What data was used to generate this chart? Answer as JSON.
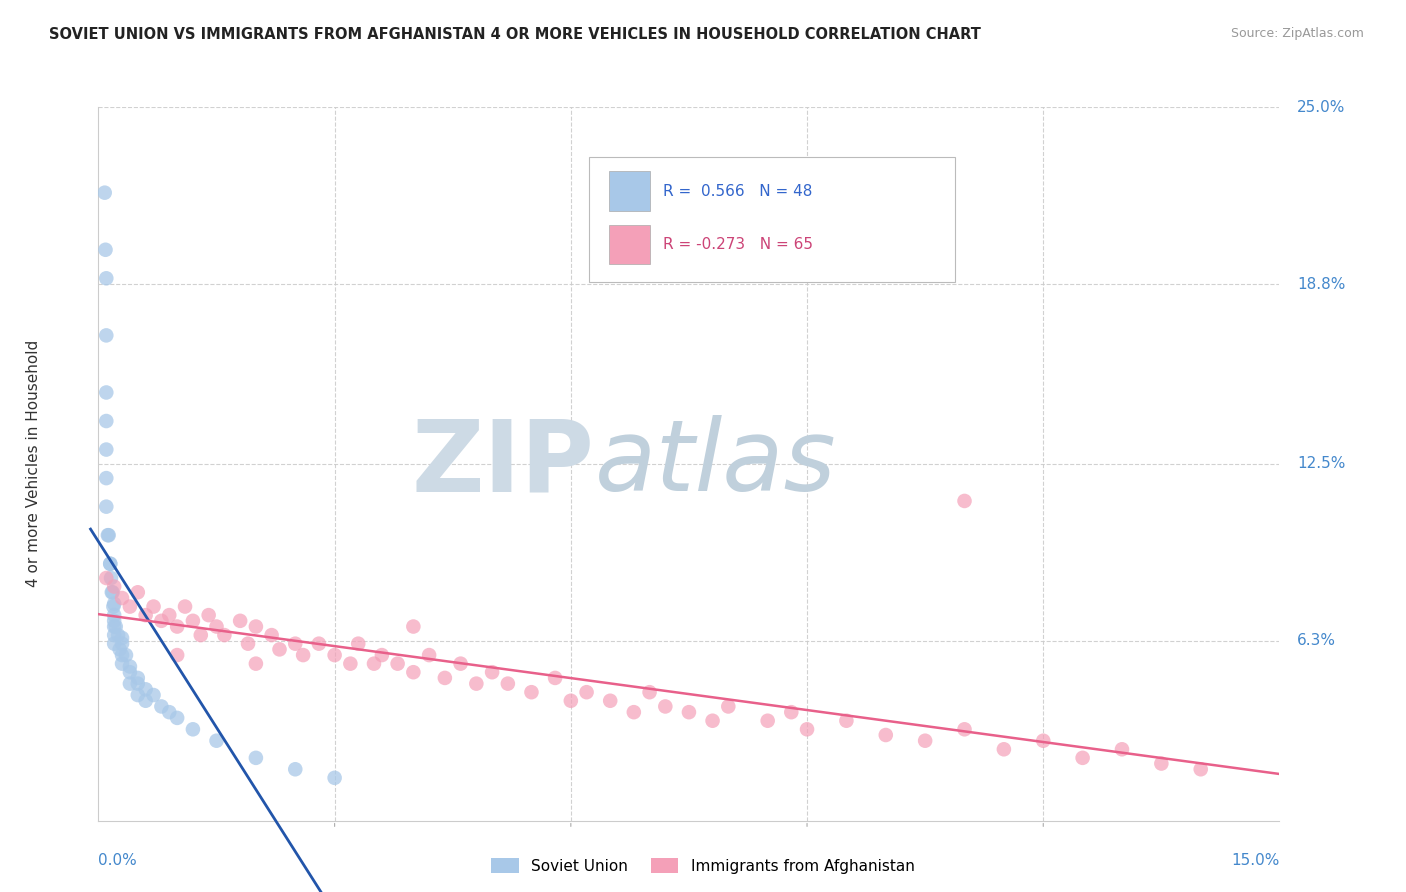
{
  "title": "SOVIET UNION VS IMMIGRANTS FROM AFGHANISTAN 4 OR MORE VEHICLES IN HOUSEHOLD CORRELATION CHART",
  "source": "Source: ZipAtlas.com",
  "ylabel": "4 or more Vehicles in Household",
  "xlim": [
    0.0,
    0.15
  ],
  "ylim": [
    0.0,
    0.25
  ],
  "ytick_labels": [
    "25.0%",
    "18.8%",
    "12.5%",
    "6.3%"
  ],
  "ytick_values": [
    0.25,
    0.188,
    0.125,
    0.063
  ],
  "color_soviet": "#a8c8e8",
  "color_afghanistan": "#f4a0b8",
  "line_color_soviet": "#2255aa",
  "line_color_afghanistan": "#e8608a",
  "watermark_zip_color": "#d0dce8",
  "watermark_atlas_color": "#c8d8e0",
  "background_color": "#ffffff",
  "grid_color": "#cccccc",
  "soviet_x": [
    0.0008,
    0.0009,
    0.001,
    0.001,
    0.001,
    0.001,
    0.001,
    0.001,
    0.001,
    0.0012,
    0.0013,
    0.0015,
    0.0015,
    0.0016,
    0.0017,
    0.0018,
    0.0019,
    0.002,
    0.002,
    0.002,
    0.002,
    0.002,
    0.002,
    0.0022,
    0.0025,
    0.0027,
    0.003,
    0.003,
    0.003,
    0.003,
    0.0035,
    0.004,
    0.004,
    0.004,
    0.005,
    0.005,
    0.005,
    0.006,
    0.006,
    0.007,
    0.008,
    0.009,
    0.01,
    0.012,
    0.015,
    0.02,
    0.025,
    0.03
  ],
  "soviet_y": [
    0.22,
    0.2,
    0.19,
    0.17,
    0.15,
    0.14,
    0.13,
    0.12,
    0.11,
    0.1,
    0.1,
    0.09,
    0.09,
    0.085,
    0.08,
    0.08,
    0.075,
    0.076,
    0.072,
    0.07,
    0.068,
    0.065,
    0.062,
    0.068,
    0.065,
    0.06,
    0.064,
    0.062,
    0.058,
    0.055,
    0.058,
    0.054,
    0.052,
    0.048,
    0.05,
    0.048,
    0.044,
    0.046,
    0.042,
    0.044,
    0.04,
    0.038,
    0.036,
    0.032,
    0.028,
    0.022,
    0.018,
    0.015
  ],
  "afghanistan_x": [
    0.001,
    0.002,
    0.003,
    0.004,
    0.005,
    0.006,
    0.007,
    0.008,
    0.009,
    0.01,
    0.011,
    0.012,
    0.013,
    0.014,
    0.015,
    0.016,
    0.018,
    0.019,
    0.02,
    0.022,
    0.023,
    0.025,
    0.026,
    0.028,
    0.03,
    0.032,
    0.033,
    0.035,
    0.036,
    0.038,
    0.04,
    0.042,
    0.044,
    0.046,
    0.048,
    0.05,
    0.052,
    0.055,
    0.058,
    0.06,
    0.062,
    0.065,
    0.068,
    0.07,
    0.072,
    0.075,
    0.078,
    0.08,
    0.085,
    0.088,
    0.09,
    0.095,
    0.1,
    0.105,
    0.11,
    0.115,
    0.12,
    0.125,
    0.13,
    0.135,
    0.14,
    0.01,
    0.02,
    0.04,
    0.11
  ],
  "afghanistan_y": [
    0.085,
    0.082,
    0.078,
    0.075,
    0.08,
    0.072,
    0.075,
    0.07,
    0.072,
    0.068,
    0.075,
    0.07,
    0.065,
    0.072,
    0.068,
    0.065,
    0.07,
    0.062,
    0.068,
    0.065,
    0.06,
    0.062,
    0.058,
    0.062,
    0.058,
    0.055,
    0.062,
    0.055,
    0.058,
    0.055,
    0.052,
    0.058,
    0.05,
    0.055,
    0.048,
    0.052,
    0.048,
    0.045,
    0.05,
    0.042,
    0.045,
    0.042,
    0.038,
    0.045,
    0.04,
    0.038,
    0.035,
    0.04,
    0.035,
    0.038,
    0.032,
    0.035,
    0.03,
    0.028,
    0.032,
    0.025,
    0.028,
    0.022,
    0.025,
    0.02,
    0.018,
    0.058,
    0.055,
    0.068,
    0.112
  ]
}
